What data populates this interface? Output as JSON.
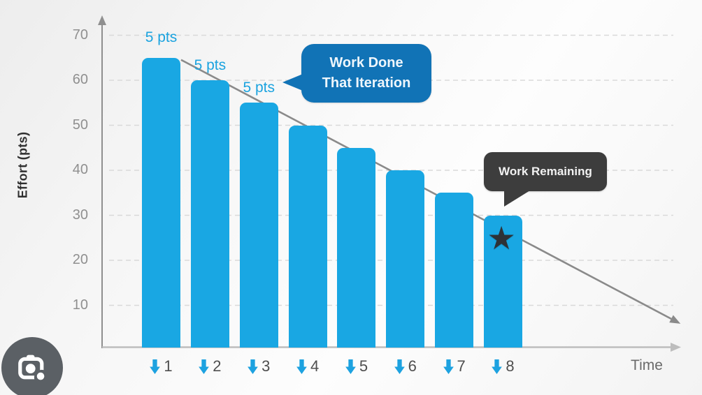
{
  "chart_data": {
    "type": "bar",
    "title": "",
    "categories": [
      "1",
      "2",
      "3",
      "4",
      "5",
      "6",
      "7",
      "8"
    ],
    "values": [
      65,
      60,
      55,
      50,
      45,
      40,
      35,
      30
    ],
    "xlabel": "Time",
    "ylabel": "Effort (pts)",
    "y_ticks": [
      70,
      60,
      50,
      40,
      30,
      20,
      10
    ],
    "ylim": [
      0,
      75
    ],
    "grid": "horizontal-dashed",
    "legend": "none",
    "bar_value_labels": [
      "5 pts",
      "5 pts",
      "5 pts"
    ],
    "trend_line": {
      "start_value": 65,
      "end_value": 7
    },
    "annotations": [
      "Work Done That Iteration",
      "Work Remaining"
    ],
    "star_marker": {
      "bar": 8,
      "value": 30
    }
  },
  "callouts": {
    "work_done": {
      "line1": "Work Done",
      "line2": "That Iteration"
    },
    "work_remaining": {
      "label": "Work Remaining"
    }
  },
  "marker": {
    "glyph": "★",
    "bar": 8
  },
  "icons": {
    "lens_button": "google-lens-camera-icon",
    "x_tick_arrow": "down-arrow-icon"
  },
  "colors": {
    "bar": "#19A7E3",
    "label_blue": "#1BA3DF",
    "bubble_blue": "#1173B6",
    "bubble_dark": "#3D3D3D",
    "axis": "#8F8F8F",
    "x_axis": "#BDBDBD",
    "grid": "#D9D9D9",
    "tick": "#8F8F8F",
    "x_num": "#4F4F4F",
    "time": "#6A6A6A",
    "y_title": "#303030",
    "star": "#2D3237",
    "trend": "#8A8A8A",
    "arrow_blue": "#1DA2E0",
    "lens_bg": "#5B6065"
  }
}
